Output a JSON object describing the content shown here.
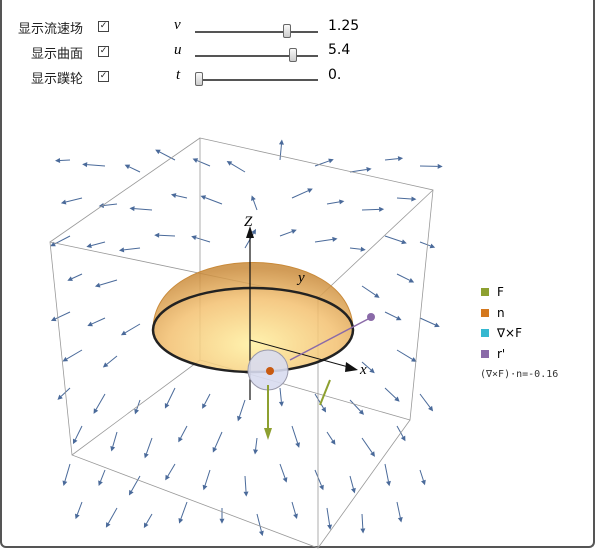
{
  "checkboxes": [
    {
      "label": "显示流速场"
    },
    {
      "label": "显示曲面"
    },
    {
      "label": "显示蹼轮"
    }
  ],
  "sliders": [
    {
      "name": "v",
      "value": "1.25"
    },
    {
      "name": "u",
      "value": "5.4"
    },
    {
      "name": "t",
      "value": "0."
    }
  ],
  "axes": {
    "x": "x",
    "y": "y",
    "z": "Z"
  },
  "legend": [
    {
      "label": "F",
      "color": "#8da030"
    },
    {
      "label": "n",
      "color": "#d4781e"
    },
    {
      "label": "∇×F",
      "color": "#35b8d0"
    },
    {
      "label": "r'",
      "color": "#8a6aa8"
    }
  ],
  "formula": "(∇×F)·n=-0.16"
}
